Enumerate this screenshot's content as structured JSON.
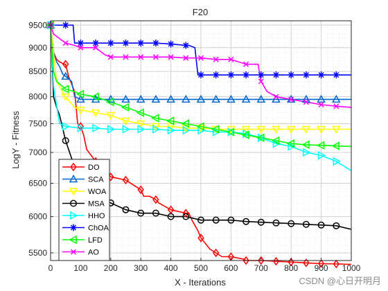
{
  "chart_data": {
    "type": "line",
    "title": "F20",
    "xlabel": "X - Iterations",
    "ylabel": "LogY - Fitness",
    "xlim": [
      0,
      1000
    ],
    "ylim": [
      5400,
      9600
    ],
    "yscale": "log",
    "xticks": [
      0,
      100,
      200,
      300,
      400,
      500,
      600,
      700,
      800,
      900,
      1000
    ],
    "yticks": [
      5500,
      6000,
      6500,
      7000,
      7500,
      8000,
      8500,
      9000,
      9500
    ],
    "grid": true,
    "legend_position": "bottom-left",
    "series": [
      {
        "name": "DO",
        "color": "#ff0000",
        "marker": "diamond",
        "x": [
          0,
          10,
          20,
          30,
          45,
          50,
          60,
          80,
          90,
          100,
          110,
          120,
          150,
          160,
          200,
          250,
          300,
          310,
          330,
          350,
          360,
          400,
          450,
          460,
          470,
          490,
          500,
          520,
          530,
          550,
          570,
          600,
          640,
          650,
          660,
          700,
          750,
          800,
          850,
          900,
          950,
          1000
        ],
        "y": [
          9500,
          8900,
          8750,
          8700,
          8650,
          8650,
          8400,
          8100,
          7500,
          7450,
          7300,
          7050,
          6850,
          6800,
          6600,
          6550,
          6400,
          6300,
          6300,
          6250,
          6200,
          6100,
          6050,
          6050,
          5950,
          5800,
          5700,
          5600,
          5550,
          5500,
          5450,
          5450,
          5420,
          5400,
          5400,
          5400,
          5390,
          5380,
          5370,
          5360,
          5355,
          5350
        ]
      },
      {
        "name": "SCA",
        "color": "#0066cc",
        "marker": "triangle-up",
        "x": [
          0,
          10,
          20,
          30,
          40,
          50,
          60,
          70,
          80,
          100,
          120,
          150,
          200,
          300,
          400,
          500,
          600,
          700,
          800,
          900,
          1000
        ],
        "y": [
          9500,
          8900,
          8700,
          8600,
          8450,
          8400,
          8350,
          8300,
          8000,
          7950,
          7950,
          7950,
          7950,
          7950,
          7950,
          7950,
          7950,
          7950,
          7950,
          7950,
          7950
        ]
      },
      {
        "name": "WOA",
        "color": "#ffff00",
        "marker": "triangle-down",
        "x": [
          0,
          20,
          50,
          80,
          100,
          150,
          200,
          250,
          300,
          350,
          400,
          450,
          500,
          550,
          600,
          650,
          700,
          750,
          800,
          850,
          900,
          950,
          1000
        ],
        "y": [
          9500,
          8300,
          8000,
          7800,
          7750,
          7700,
          7650,
          7550,
          7500,
          7450,
          7450,
          7420,
          7420,
          7400,
          7400,
          7400,
          7400,
          7400,
          7400,
          7400,
          7400,
          7400,
          7400
        ]
      },
      {
        "name": "MSA",
        "color": "#000000",
        "marker": "circle",
        "x": [
          0,
          10,
          20,
          30,
          50,
          70,
          90,
          100,
          120,
          150,
          200,
          250,
          300,
          350,
          400,
          450,
          500,
          550,
          600,
          650,
          700,
          750,
          800,
          850,
          900,
          950,
          1000
        ],
        "y": [
          9500,
          8000,
          7800,
          7650,
          7200,
          6900,
          6650,
          6500,
          6350,
          6250,
          6200,
          6100,
          6050,
          6050,
          6000,
          6000,
          5950,
          5950,
          5950,
          5930,
          5920,
          5910,
          5900,
          5890,
          5880,
          5870,
          5820
        ]
      },
      {
        "name": "HHO",
        "color": "#00ffff",
        "marker": "triangle-right",
        "x": [
          0,
          10,
          30,
          50,
          100,
          150,
          200,
          250,
          300,
          350,
          400,
          450,
          500,
          550,
          600,
          650,
          700,
          750,
          800,
          850,
          900,
          950,
          1000
        ],
        "y": [
          9500,
          8200,
          7500,
          7450,
          7420,
          7420,
          7400,
          7400,
          7400,
          7400,
          7380,
          7380,
          7380,
          7350,
          7350,
          7320,
          7250,
          7150,
          7100,
          7000,
          6950,
          6850,
          6700
        ]
      },
      {
        "name": "ChOA",
        "color": "#0000ff",
        "marker": "star",
        "x": [
          0,
          50,
          75,
          80,
          90,
          100,
          150,
          200,
          250,
          300,
          350,
          400,
          450,
          460,
          480,
          490,
          500,
          550,
          600,
          650,
          700,
          750,
          800,
          850,
          900,
          950,
          1000
        ],
        "y": [
          9500,
          9500,
          9500,
          9100,
          9100,
          9100,
          9100,
          9100,
          9100,
          9100,
          9100,
          9080,
          9050,
          9050,
          9000,
          8430,
          8430,
          8430,
          8430,
          8430,
          8430,
          8430,
          8430,
          8430,
          8430,
          8430,
          8430
        ]
      },
      {
        "name": "LFD",
        "color": "#00ff00",
        "marker": "triangle-left",
        "x": [
          0,
          10,
          20,
          30,
          50,
          80,
          100,
          150,
          200,
          250,
          300,
          350,
          400,
          450,
          500,
          550,
          600,
          650,
          700,
          750,
          800,
          850,
          900,
          950,
          1000
        ],
        "y": [
          9500,
          8500,
          8300,
          8250,
          8150,
          8100,
          8050,
          8000,
          7900,
          7800,
          7700,
          7600,
          7550,
          7500,
          7450,
          7400,
          7350,
          7300,
          7250,
          7200,
          7150,
          7130,
          7120,
          7110,
          7100
        ]
      },
      {
        "name": "AO",
        "color": "#ff00ff",
        "marker": "x",
        "x": [
          0,
          10,
          30,
          50,
          80,
          100,
          150,
          180,
          200,
          250,
          300,
          350,
          400,
          450,
          500,
          550,
          600,
          650,
          690,
          700,
          720,
          750,
          800,
          850,
          900,
          950,
          1000
        ],
        "y": [
          9500,
          9300,
          9200,
          9100,
          9050,
          9000,
          9000,
          8850,
          8800,
          8800,
          8800,
          8800,
          8800,
          8780,
          8780,
          8750,
          8750,
          8650,
          8650,
          8300,
          8100,
          8000,
          7950,
          7900,
          7850,
          7820,
          7800
        ]
      }
    ]
  },
  "watermark": "CSDN @心日开明月"
}
